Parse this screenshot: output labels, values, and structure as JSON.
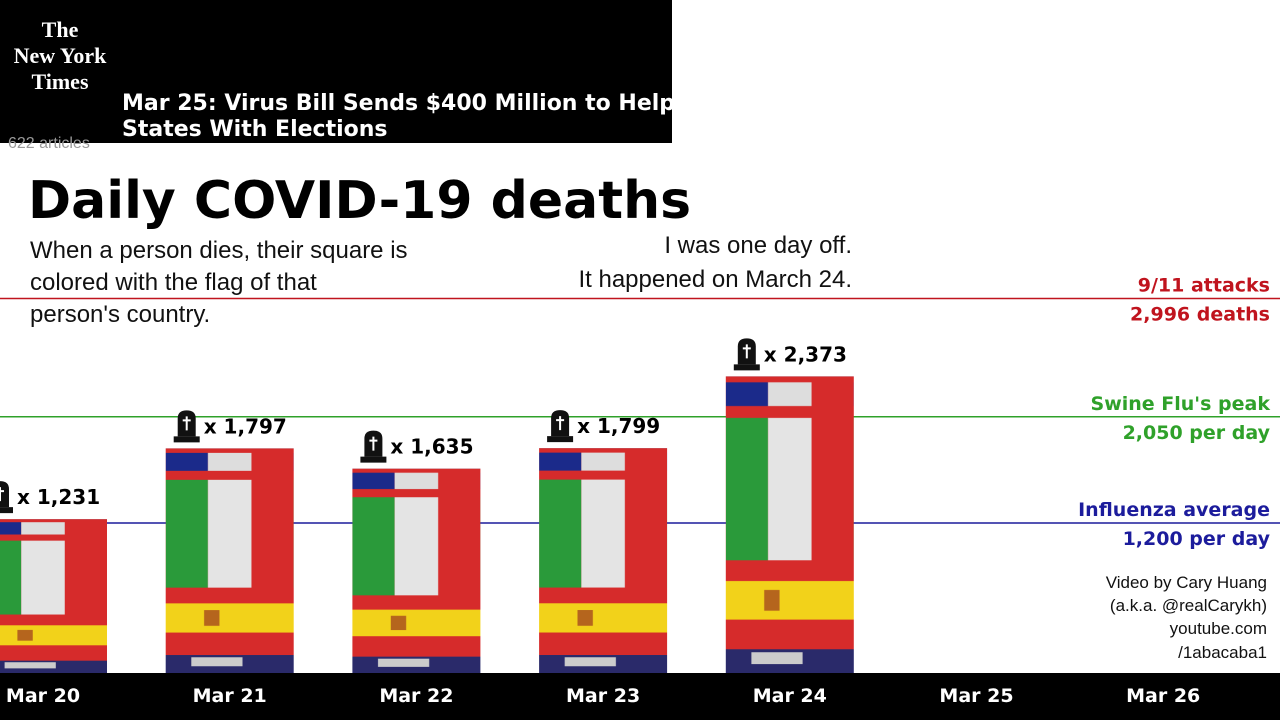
{
  "header": {
    "logo": [
      "The",
      "New York",
      "Times"
    ],
    "headline": [
      "Mar 25: Virus Bill Sends $400 Million to Help",
      "States With Elections"
    ],
    "count": "622 articles"
  },
  "credits": [
    "Video by Cary Huang",
    "(a.k.a. @realCarykh)",
    "youtube.com",
    "/1abacaba1"
  ],
  "chart_data": {
    "type": "bar",
    "title": "Daily COVID-19 deaths",
    "subtitle": [
      "When a person dies, their square is",
      "colored with the flag of that",
      "person's country."
    ],
    "annotation": [
      "I was one day off.",
      "It happened on March 24."
    ],
    "categories": [
      "Mar 20",
      "Mar 21",
      "Mar 22",
      "Mar 23",
      "Mar 24",
      "Mar 25",
      "Mar 26"
    ],
    "values": [
      1231,
      1797,
      1635,
      1799,
      2373,
      null,
      null
    ],
    "value_labels": [
      "x 1,231",
      "x 1,797",
      "x 1,635",
      "x 1,799",
      "x 2,373",
      null,
      null
    ],
    "ylim": [
      0,
      3000
    ],
    "reference_lines": [
      {
        "label": "9/11 attacks",
        "sublabel": "2,996 deaths",
        "value": 2996,
        "color": "#c0141e"
      },
      {
        "label": "Swine Flu's peak",
        "sublabel": "2,050 per day",
        "value": 2050,
        "color": "#2fa12a"
      },
      {
        "label": "Influenza average",
        "sublabel": "1,200 per day",
        "value": 1200,
        "color": "#1c1c9c"
      }
    ]
  }
}
